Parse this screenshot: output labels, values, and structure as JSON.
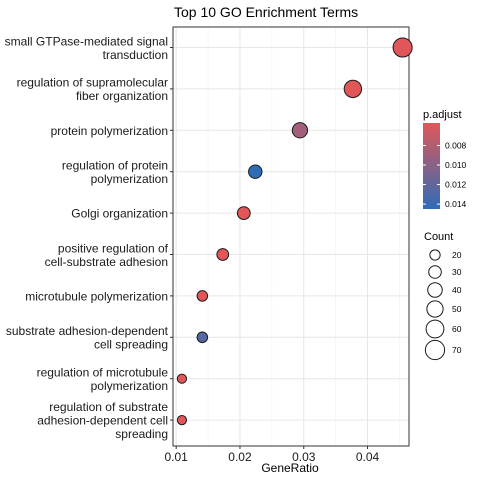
{
  "chart_data": {
    "type": "scatter",
    "title": "Top 10 GO Enrichment Terms",
    "xlabel": "GeneRatio",
    "ylabel": "",
    "xlim": [
      0.0095,
      0.0465
    ],
    "xticks": [
      0.01,
      0.02,
      0.03,
      0.04
    ],
    "xtick_labels": [
      "0.01",
      "0.02",
      "0.03",
      "0.04"
    ],
    "grid": true,
    "terms": [
      {
        "label": [
          "small GTPase-mediated signal",
          "transduction"
        ],
        "gene_ratio": 0.0455,
        "count": 69,
        "p_adjust": 0.0057
      },
      {
        "label": [
          "regulation of supramolecular",
          "fiber organization"
        ],
        "gene_ratio": 0.0377,
        "count": 57,
        "p_adjust": 0.0057
      },
      {
        "label": [
          "protein polymerization"
        ],
        "gene_ratio": 0.0294,
        "count": 44,
        "p_adjust": 0.0088
      },
      {
        "label": [
          "regulation of protein",
          "polymerization"
        ],
        "gene_ratio": 0.0224,
        "count": 34,
        "p_adjust": 0.0145
      },
      {
        "label": [
          "Golgi organization"
        ],
        "gene_ratio": 0.0206,
        "count": 31,
        "p_adjust": 0.0057
      },
      {
        "label": [
          "positive regulation of",
          "cell-substrate adhesion"
        ],
        "gene_ratio": 0.0173,
        "count": 26,
        "p_adjust": 0.0057
      },
      {
        "label": [
          "microtubule polymerization"
        ],
        "gene_ratio": 0.0141,
        "count": 21,
        "p_adjust": 0.0057
      },
      {
        "label": [
          "substrate adhesion-dependent",
          "cell spreading"
        ],
        "gene_ratio": 0.0141,
        "count": 21,
        "p_adjust": 0.0125
      },
      {
        "label": [
          "regulation of microtubule",
          "polymerization"
        ],
        "gene_ratio": 0.0109,
        "count": 16,
        "p_adjust": 0.0057
      },
      {
        "label": [
          "regulation of substrate",
          "adhesion-dependent cell",
          "spreading"
        ],
        "gene_ratio": 0.0109,
        "count": 16,
        "p_adjust": 0.0057
      }
    ],
    "color_legend": {
      "title": "p.adjust",
      "range": [
        0.0057,
        0.0145
      ],
      "low_color": "#e15759",
      "high_color": "#2e6cb8",
      "ticks": [
        0.008,
        0.01,
        0.012,
        0.014
      ],
      "tick_labels": [
        "0.008",
        "0.010",
        "0.012",
        "0.014"
      ]
    },
    "size_legend": {
      "title": "Count",
      "values": [
        20,
        30,
        40,
        50,
        60,
        70
      ],
      "labels": [
        "20",
        "30",
        "40",
        "50",
        "60",
        "70"
      ]
    }
  }
}
